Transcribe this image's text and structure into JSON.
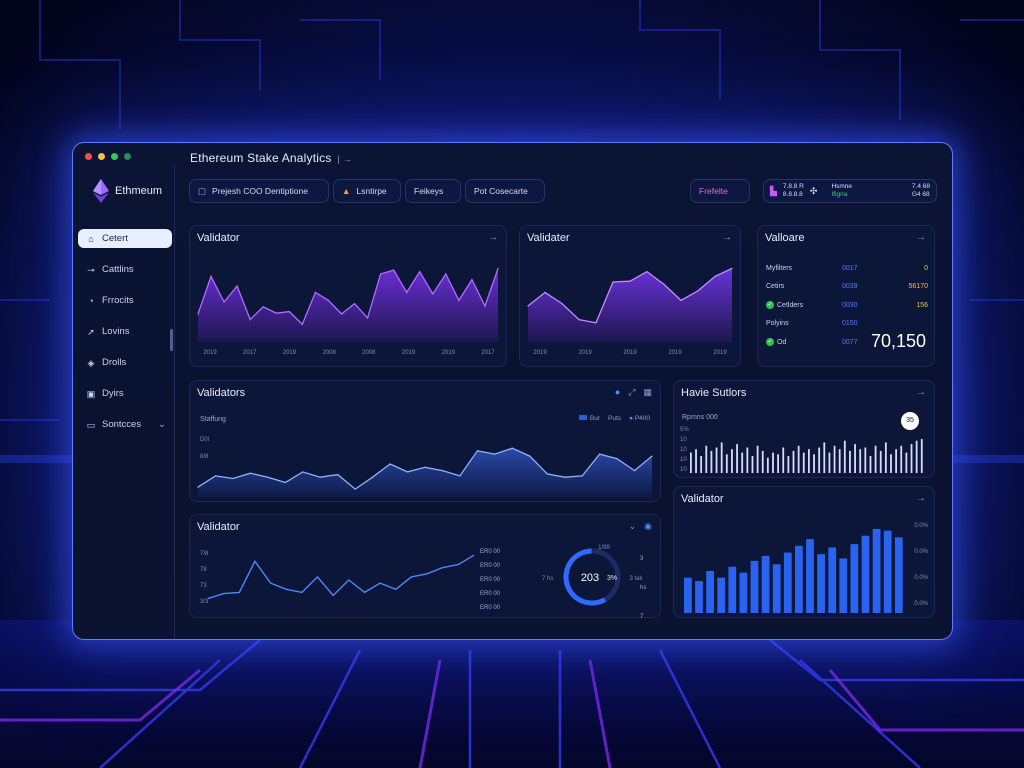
{
  "window": {
    "title": "Ethereum Stake Analytics",
    "title_suffix": "| →"
  },
  "colors": {
    "accent": "#7b5bff",
    "purple": "#8b3dff",
    "blue": "#2f6bff",
    "ok": "#25c64b",
    "warn": "#f5c242"
  },
  "sidebar": {
    "brand": "Ethmeum",
    "items": [
      {
        "label": "Cetert",
        "icon": "home-icon",
        "active": true
      },
      {
        "label": "Cattlins",
        "icon": "plug-icon"
      },
      {
        "label": "Frrocits",
        "icon": "clock-icon"
      },
      {
        "label": "Lovins",
        "icon": "rocket-icon"
      },
      {
        "label": "Drolls",
        "icon": "tag-icon"
      },
      {
        "label": "Dyirs",
        "icon": "doc-icon"
      },
      {
        "label": "Sontcces",
        "icon": "monitor-icon",
        "chevron": "⌄"
      }
    ]
  },
  "toolbar": {
    "pill1": "Prejesh COO Dentiptione",
    "pill2": "Lsntirpe",
    "pill3": "Feikeys",
    "pill4": "Pot Cosecarte",
    "status": "Frefelte",
    "account": {
      "line1": "7.8.8 R",
      "line2": "8.8.8.8",
      "mid1": "Hsmne",
      "mid2": "Ifigna",
      "right1": "7.4 68",
      "right2": "G4 68"
    }
  },
  "panel_top1": {
    "title": "Validator",
    "x_ticks": [
      "2019",
      "2017",
      "2019",
      "2008",
      "2008",
      "2019",
      "2019",
      "2017"
    ],
    "values": [
      0.35,
      0.82,
      0.5,
      0.7,
      0.28,
      0.44,
      0.36,
      0.38,
      0.22,
      0.62,
      0.52,
      0.35,
      0.48,
      0.3,
      0.85,
      0.9,
      0.62,
      0.88,
      0.6,
      0.85,
      0.52,
      0.78,
      0.45,
      0.92
    ]
  },
  "panel_top2": {
    "title": "Validater",
    "x_ticks": [
      "2019",
      "2019",
      "2019",
      "2019",
      "2019"
    ],
    "values": [
      0.45,
      0.62,
      0.48,
      0.28,
      0.24,
      0.75,
      0.76,
      0.88,
      0.72,
      0.52,
      0.64,
      0.82,
      0.92
    ]
  },
  "panel_stats": {
    "title": "Valloare",
    "rows": [
      {
        "label": "Myfilters",
        "value": "0017",
        "extra": "0",
        "badge": false
      },
      {
        "label": "Cetirs",
        "value": "0039",
        "extra": "56170",
        "badge": false
      },
      {
        "label": "Cetlders",
        "value": "0030",
        "extra": "156",
        "badge": true
      },
      {
        "label": "Polyins",
        "value": "0150",
        "extra": "",
        "badge": false
      },
      {
        "label": "Od",
        "value": "0077",
        "extra": "",
        "badge": true
      }
    ],
    "big": "70,150"
  },
  "panel_mid": {
    "title": "Validators",
    "sub": "Staffung",
    "legend": [
      "Bur",
      "Puts",
      "P400"
    ],
    "y_ticks": [
      "D0l",
      "8/8"
    ],
    "values": [
      0.15,
      0.32,
      0.28,
      0.36,
      0.3,
      0.22,
      0.38,
      0.3,
      0.34,
      0.12,
      0.3,
      0.5,
      0.38,
      0.45,
      0.4,
      0.32,
      0.7,
      0.65,
      0.74,
      0.62,
      0.35,
      0.3,
      0.32,
      0.65,
      0.58,
      0.4,
      0.62
    ]
  },
  "panel_bars_top": {
    "title": "Havie Sutlors",
    "sub": "Rpmns 000",
    "y_ticks": [
      "5%",
      "10",
      "10",
      "10",
      "10"
    ],
    "badge": "35",
    "values": [
      0.6,
      0.7,
      0.5,
      0.8,
      0.65,
      0.75,
      0.9,
      0.55,
      0.7,
      0.85,
      0.6,
      0.75,
      0.5,
      0.8,
      0.65,
      0.45,
      0.6,
      0.55,
      0.75,
      0.5,
      0.65,
      0.8,
      0.6,
      0.7,
      0.55,
      0.75,
      0.9,
      0.6,
      0.8,
      0.7,
      0.95,
      0.65,
      0.85,
      0.7,
      0.75,
      0.5,
      0.8,
      0.65,
      0.9,
      0.55,
      0.7,
      0.8,
      0.6,
      0.85,
      0.95,
      1.0
    ]
  },
  "panel_bottom": {
    "title": "Validator",
    "y_ticks": [
      "7/8",
      "78",
      "73",
      "3/3"
    ],
    "right_ticks": [
      "ER0 00",
      "ER0 00",
      "ER0 00",
      "ER0 00",
      "ER0 00"
    ],
    "values": [
      0.2,
      0.28,
      0.3,
      0.8,
      0.45,
      0.35,
      0.3,
      0.55,
      0.25,
      0.5,
      0.3,
      0.45,
      0.35,
      0.55,
      0.6,
      0.7,
      0.75,
      0.9
    ],
    "gauge": {
      "value": "203",
      "suffix": "3%",
      "top": "1/99",
      "fill": 0.58
    },
    "gauge_ticks": [
      "3 hs",
      "7 hs",
      "7 tak",
      "3 tak"
    ]
  },
  "panel_bars_bottom": {
    "title": "Validator",
    "y_ticks": [
      "0.0%",
      "0.0%",
      "0.0%",
      "0.0%"
    ],
    "values": [
      0.42,
      0.38,
      0.5,
      0.42,
      0.55,
      0.48,
      0.62,
      0.68,
      0.58,
      0.72,
      0.8,
      0.88,
      0.7,
      0.78,
      0.65,
      0.82,
      0.92,
      1.0,
      0.98,
      0.9
    ]
  }
}
